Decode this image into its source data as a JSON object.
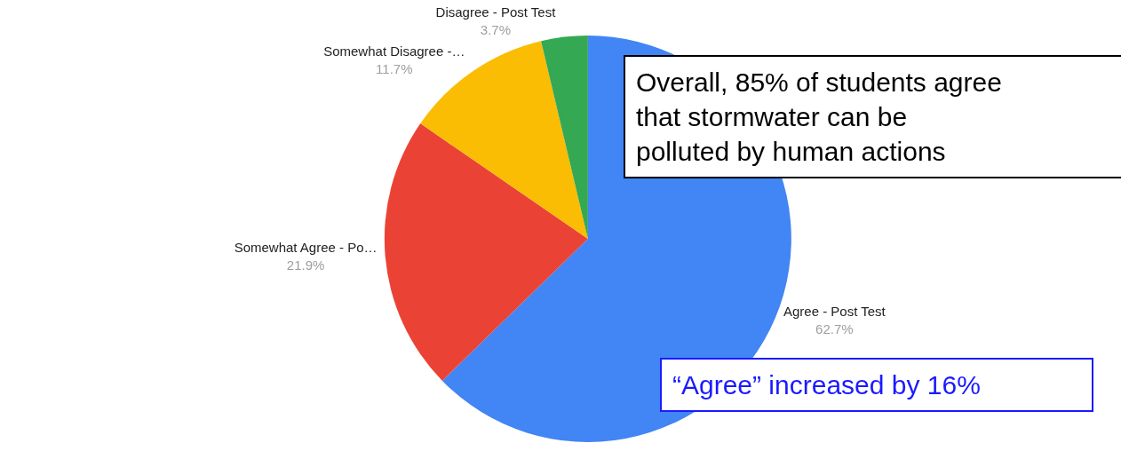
{
  "chart_data": {
    "type": "pie",
    "categories": [
      "Agree - Post Test",
      "Somewhat Agree - Po…",
      "Somewhat Disagree -…",
      "Disagree - Post Test"
    ],
    "values": [
      62.7,
      21.9,
      11.7,
      3.7
    ],
    "value_labels": [
      "62.7%",
      "21.9%",
      "11.7%",
      "3.7%"
    ],
    "colors": [
      "#4285f4",
      "#ea4335",
      "#fbbc04",
      "#34a853"
    ],
    "annotations": [
      "Overall, 85% of students agree that stormwater can be polluted by human actions",
      "“Agree” increased by 16%"
    ],
    "legend": false
  }
}
